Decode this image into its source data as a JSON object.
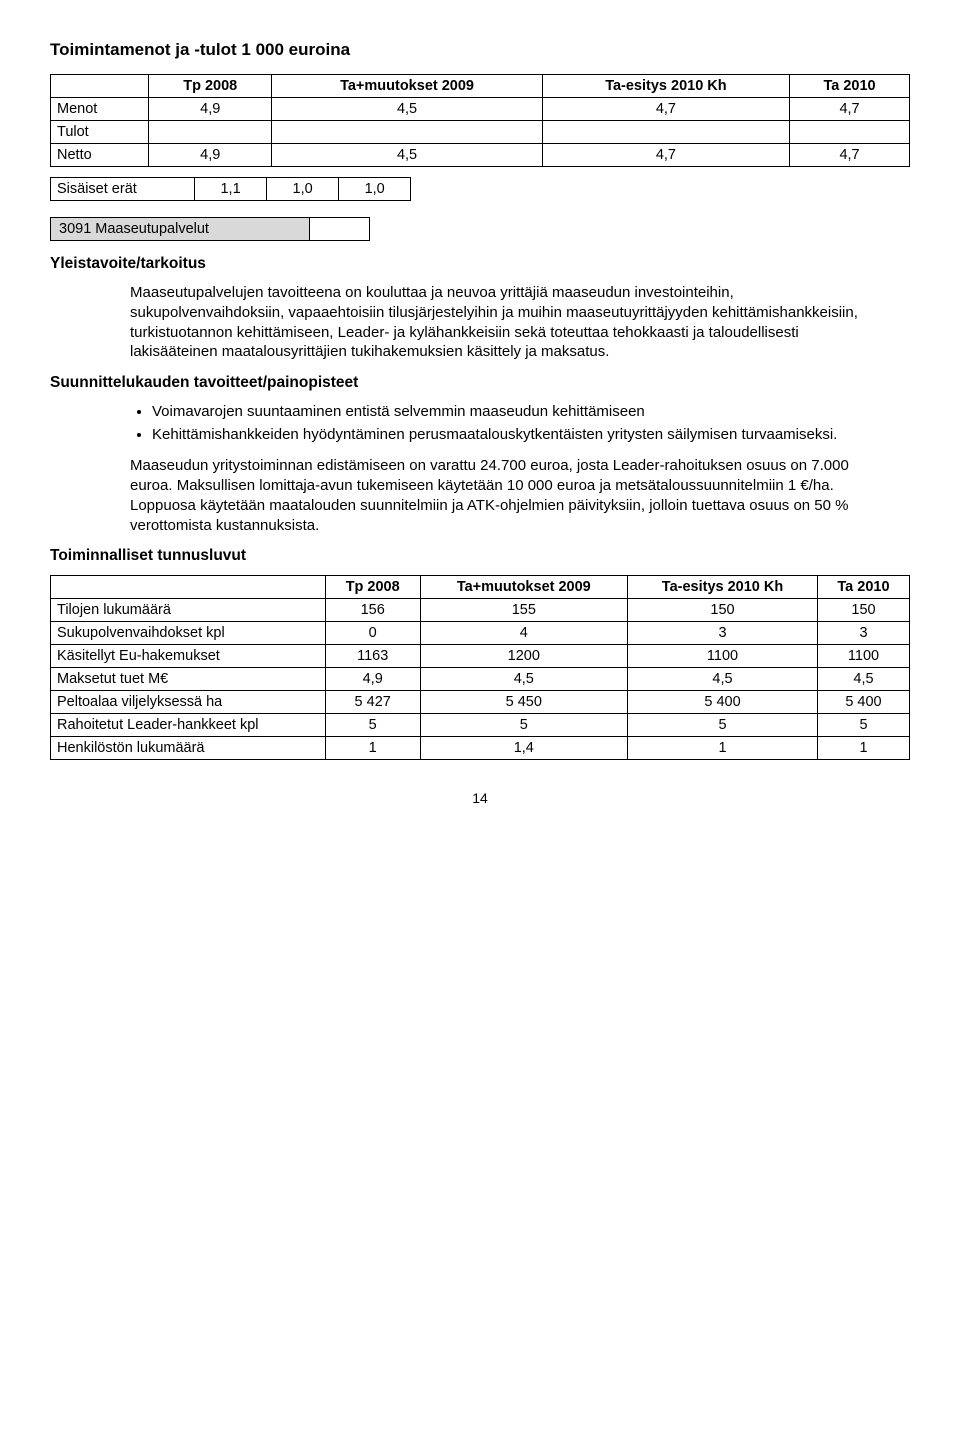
{
  "title": "Toimintamenot ja -tulot  1 000 euroina",
  "table1": {
    "headers": [
      "",
      "Tp 2008",
      "Ta+muutokset 2009",
      "Ta-esitys 2010 Kh",
      "Ta 2010"
    ],
    "rows": [
      {
        "label": "Menot",
        "vals": [
          "4,9",
          "4,5",
          "4,7",
          "4,7"
        ]
      },
      {
        "label": "Tulot",
        "vals": [
          "",
          "",
          "",
          ""
        ]
      },
      {
        "label": "Netto",
        "vals": [
          "4,9",
          "4,5",
          "4,7",
          "4,7"
        ]
      }
    ]
  },
  "table_sis": {
    "label": "Sisäiset erät",
    "vals": [
      "1,1",
      "1,0",
      "1,0"
    ]
  },
  "graybox": "3091 Maaseutupalvelut",
  "h_yleis": "Yleistavoite/tarkoitus",
  "p_yleis": "Maaseutupalvelujen tavoitteena on kouluttaa ja neuvoa yrittäjiä maaseudun investointeihin, sukupolvenvaihdoksiin, vapaaehtoisiin tilusjärjestelyihin ja muihin maaseutuyrittäjyyden kehittämishankkeisiin, turkistuotannon kehittämiseen, Leader- ja kylähankkeisiin sekä toteuttaa tehokkaasti ja taloudellisesti lakisääteinen maatalousyrittäjien tukihakemuksien käsittely ja maksatus.",
  "h_suun": "Suunnittelukauden tavoitteet/painopisteet",
  "bullets": [
    "Voimavarojen suuntaaminen entistä selvemmin maaseudun kehittämiseen",
    "Kehittämishankkeiden hyödyntäminen perusmaatalouskytkentäisten yritysten säilymisen turvaamiseksi."
  ],
  "p_maas": "Maaseudun yritystoiminnan edistämiseen on varattu 24.700 euroa, josta Leader-rahoituksen osuus on 7.000 euroa. Maksullisen lomittaja-avun tukemiseen käytetään 10 000 euroa ja metsätaloussuunnitelmiin 1 €/ha. Loppuosa käytetään maatalouden suunnitelmiin ja ATK-ohjelmien päivityksiin, jolloin tuettava osuus on 50 % verottomista kustannuksista.",
  "h_toim": "Toiminnalliset tunnusluvut",
  "table2": {
    "headers": [
      "",
      "Tp 2008",
      "Ta+muutokset 2009",
      "Ta-esitys 2010 Kh",
      "Ta 2010"
    ],
    "rows": [
      {
        "label": "Tilojen lukumäärä",
        "vals": [
          "156",
          "155",
          "150",
          "150"
        ]
      },
      {
        "label": "Sukupolvenvaihdokset kpl",
        "vals": [
          "0",
          "4",
          "3",
          "3"
        ]
      },
      {
        "label": "Käsitellyt Eu-hakemukset",
        "vals": [
          "1163",
          "1200",
          "1100",
          "1100"
        ]
      },
      {
        "label": "Maksetut tuet M€",
        "vals": [
          "4,9",
          "4,5",
          "4,5",
          "4,5"
        ]
      },
      {
        "label": "Peltoalaa viljelyksessä ha",
        "vals": [
          "5 427",
          "5 450",
          "5 400",
          "5 400"
        ]
      },
      {
        "label": "Rahoitetut Leader-hankkeet kpl",
        "vals": [
          "5",
          "5",
          "5",
          "5"
        ]
      },
      {
        "label": "Henkilöstön lukumäärä",
        "vals": [
          "1",
          "1,4",
          "1",
          "1"
        ]
      }
    ]
  },
  "pagenum": "14"
}
